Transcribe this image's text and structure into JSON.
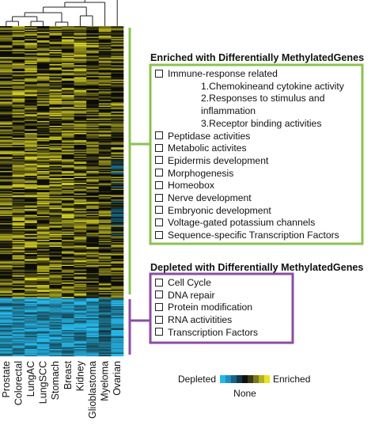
{
  "columns": [
    "Prostate",
    "Colorectal",
    "LungAC",
    "LungSCC",
    "Stomach",
    "Breast",
    "Kidney",
    "Glioblastoma",
    "Myeloma",
    "Ovarian"
  ],
  "enriched": {
    "title": "Enriched with Differentially MethylatedGenes",
    "items": [
      {
        "label": "Immune-response related",
        "children": [
          "1.Chemokineand cytokine activity",
          "2.Responses to stimulus and inflammation",
          "3.Receptor binding activities"
        ]
      },
      {
        "label": "Peptidase activities"
      },
      {
        "label": "Metabolic activites"
      },
      {
        "label": "Epidermis development"
      },
      {
        "label": "Morphogenesis"
      },
      {
        "label": "Homeobox"
      },
      {
        "label": "Nerve development"
      },
      {
        "label": "Embryonic development"
      },
      {
        "label": "Voltage-gated potassium channels"
      },
      {
        "label": "Sequence-specific Transcription Factors"
      }
    ]
  },
  "depleted": {
    "title": "Depleted with Differentially MethylatedGenes",
    "items": [
      {
        "label": "Cell Cycle"
      },
      {
        "label": "DNA repair"
      },
      {
        "label": "Protein modification"
      },
      {
        "label": "RNA activitities"
      },
      {
        "label": "Transcription Factors"
      }
    ]
  },
  "legend": {
    "left": "Depleted",
    "right": "Enriched",
    "center": "None",
    "colors": [
      "#27b7e8",
      "#1f8fbf",
      "#1a6288",
      "#16384a",
      "#111111",
      "#3b3a14",
      "#7a771c",
      "#b5b020",
      "#e8e227"
    ]
  },
  "colors": {
    "enriched_bracket": "#8cc152",
    "depleted_bracket": "#8a4fa0",
    "heat_yellow": "#e8e227",
    "heat_blue": "#27b7e8"
  }
}
